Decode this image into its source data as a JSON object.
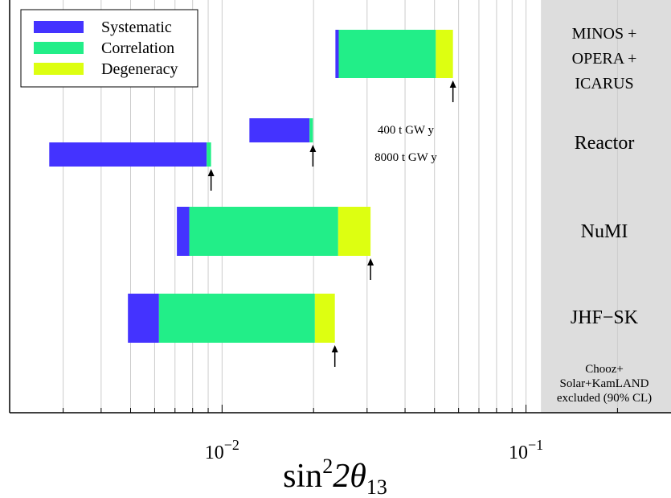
{
  "chart_data": {
    "type": "bar",
    "orientation": "horizontal-stacked",
    "xscale": "log",
    "xlim": [
      0.002,
      0.3
    ],
    "grid": "vertical",
    "legend_position": "top-left",
    "xlabel": {
      "base": "sin",
      "sup": "2",
      "mid": "2θ",
      "sub": "13"
    },
    "x_ticks": [
      {
        "value": 0.01,
        "base": "10",
        "exp": "−2"
      },
      {
        "value": 0.1,
        "base": "10",
        "exp": "−1"
      }
    ],
    "series": [
      {
        "name": "Systematic",
        "color": "#4433ff"
      },
      {
        "name": "Correlation",
        "color": "#22ee88"
      },
      {
        "name": "Degeneracy",
        "color": "#ddff11"
      }
    ],
    "experiments": [
      {
        "label_lines": [
          "MINOS +",
          "OPERA +",
          "ICARUS"
        ],
        "bars": [
          {
            "segments": [
              0.0236,
              0.0242,
              0.0505,
              0.0575
            ],
            "arrow": 0.0575
          }
        ]
      },
      {
        "label_lines": [
          "Reactor"
        ],
        "bars": [
          {
            "segments": [
              0.0123,
              0.0194,
              0.0199,
              0.0199
            ],
            "arrow": 0.0199,
            "note": "400 t GW y"
          },
          {
            "segments": [
              0.0027,
              0.0089,
              0.0092,
              0.0092
            ],
            "arrow": 0.0092,
            "note": "8000 t GW y"
          }
        ]
      },
      {
        "label_lines": [
          "NuMI"
        ],
        "bars": [
          {
            "segments": [
              0.0071,
              0.0078,
              0.0241,
              0.0308
            ],
            "arrow": 0.0308
          }
        ]
      },
      {
        "label_lines": [
          "JHF−SK"
        ],
        "bars": [
          {
            "segments": [
              0.0049,
              0.0062,
              0.0202,
              0.0235
            ],
            "arrow": 0.0235
          }
        ]
      }
    ],
    "excluded_region": {
      "from": 0.112,
      "lines": [
        "Chooz+",
        "Solar+KamLAND",
        "excluded (90% CL)"
      ],
      "color": "#dddddd"
    }
  }
}
